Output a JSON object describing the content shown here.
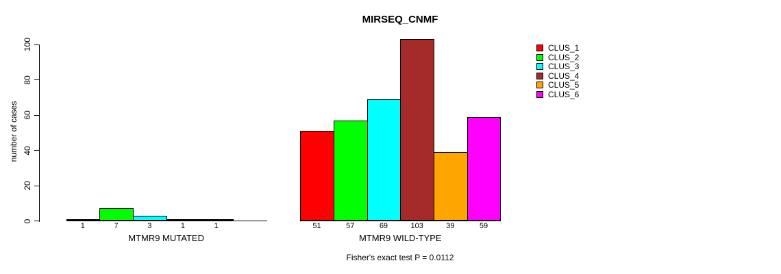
{
  "page": {
    "background": "#ffffff"
  },
  "chart_data": {
    "type": "bar",
    "title": "MIRSEQ_CNMF",
    "ylabel": "number of cases",
    "xlabel": "",
    "ylim": [
      0,
      100
    ],
    "yticks": [
      0,
      20,
      40,
      60,
      80,
      100
    ],
    "grid": false,
    "legend_position": "right-top",
    "categories": [
      "MTMR9 MUTATED",
      "MTMR9 WILD-TYPE"
    ],
    "series": [
      {
        "name": "CLUS_1",
        "color": "#ff0000",
        "values": [
          1,
          51
        ]
      },
      {
        "name": "CLUS_2",
        "color": "#00ff00",
        "values": [
          7,
          57
        ]
      },
      {
        "name": "CLUS_3",
        "color": "#00ffff",
        "values": [
          3,
          69
        ]
      },
      {
        "name": "CLUS_4",
        "color": "#a52a2a",
        "values": [
          1,
          103
        ]
      },
      {
        "name": "CLUS_5",
        "color": "#ffa500",
        "values": [
          1,
          39
        ]
      },
      {
        "name": "CLUS_6",
        "color": "#ff00ff",
        "values": [
          0,
          59
        ]
      }
    ],
    "bar_value_labels": [
      [
        "1",
        "7",
        "3",
        "1",
        "1",
        ""
      ],
      [
        "51",
        "57",
        "69",
        "103",
        "39",
        "59"
      ]
    ],
    "annotation": "Fisher's exact test P = 0.0112"
  }
}
